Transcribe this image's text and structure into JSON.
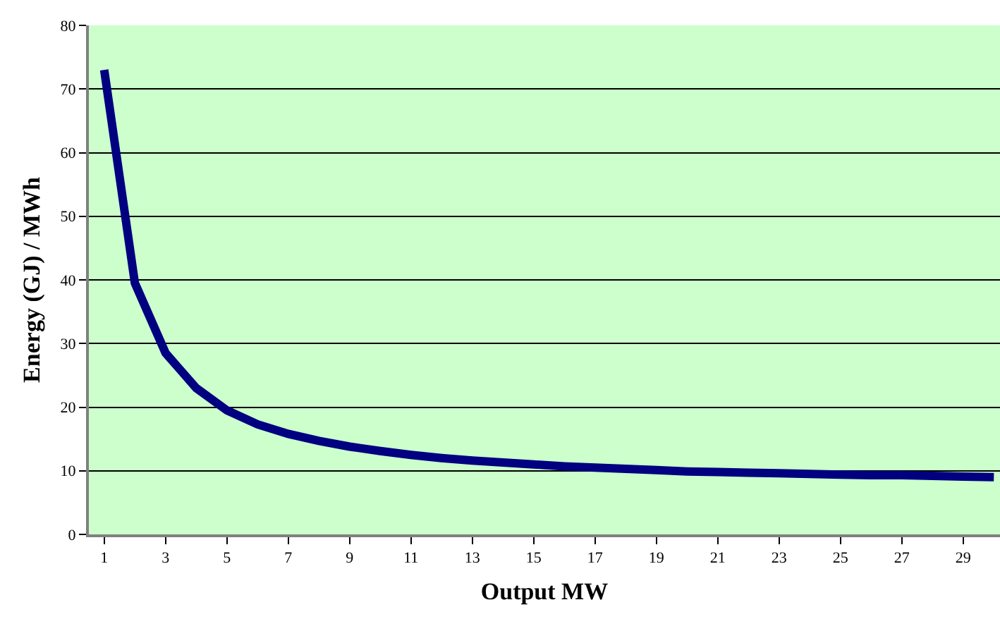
{
  "chart_data": {
    "type": "line",
    "xlabel": "Output MW",
    "ylabel": "Energy (GJ) / MWh",
    "x": [
      1,
      2,
      3,
      4,
      5,
      6,
      7,
      8,
      9,
      10,
      11,
      12,
      13,
      14,
      15,
      16,
      17,
      18,
      19,
      20,
      21,
      22,
      23,
      24,
      25,
      26,
      27,
      28,
      29,
      30
    ],
    "series": [
      {
        "color": "#000080",
        "values": [
          73,
          39.5,
          28.5,
          23,
          19.5,
          17.3,
          15.8,
          14.7,
          13.8,
          13.1,
          12.5,
          12,
          11.6,
          11.3,
          11,
          10.7,
          10.5,
          10.3,
          10.1,
          9.9,
          9.8,
          9.7,
          9.6,
          9.5,
          9.4,
          9.3,
          9.3,
          9.2,
          9.1,
          9.0
        ]
      }
    ],
    "xlim": [
      0.5,
      30.2
    ],
    "xticks": [
      1,
      3,
      5,
      7,
      9,
      11,
      13,
      15,
      17,
      19,
      21,
      23,
      25,
      27,
      29
    ],
    "ylim": [
      0,
      80
    ],
    "yticks": [
      0,
      10,
      20,
      30,
      40,
      50,
      60,
      70,
      80
    ],
    "grid": "y",
    "marker": "none",
    "line_style": "solid"
  }
}
